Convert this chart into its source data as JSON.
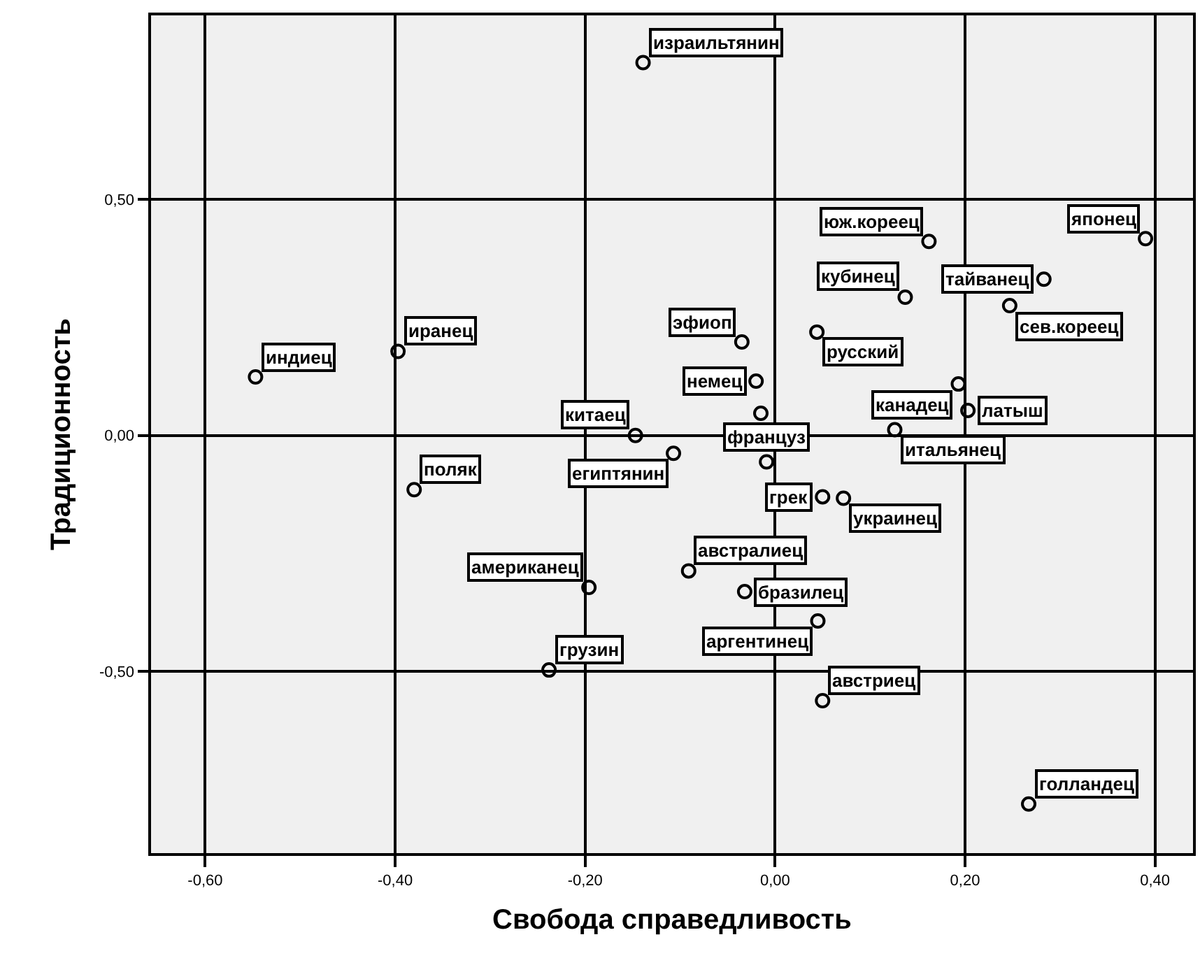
{
  "chart_data": {
    "type": "scatter",
    "xlabel": "Свобода справедливость",
    "ylabel": "Традиционность",
    "x": [
      -0.139,
      -0.547,
      -0.397,
      -0.147,
      -0.38,
      -0.196,
      -0.238,
      0.162,
      0.39,
      0.137,
      0.283,
      0.247,
      -0.035,
      0.044,
      -0.02,
      -0.015,
      -0.107,
      -0.009,
      0.126,
      0.193,
      0.203,
      0.05,
      0.072,
      -0.091,
      -0.032,
      0.045,
      0.05,
      0.267
    ],
    "values": [
      0.79,
      0.124,
      0.178,
      0.0,
      -0.115,
      -0.322,
      -0.497,
      0.411,
      0.417,
      0.293,
      0.331,
      0.275,
      0.198,
      0.219,
      0.115,
      0.047,
      -0.038,
      -0.056,
      0.012,
      0.109,
      0.053,
      -0.13,
      -0.133,
      -0.287,
      -0.331,
      -0.393,
      -0.562,
      -0.781
    ],
    "color": "#000000",
    "marker": "circle",
    "annotations": [
      {
        "text": "израильтянин",
        "x": -0.139,
        "y": 0.79
      },
      {
        "text": "индиец",
        "x": -0.547,
        "y": 0.124
      },
      {
        "text": "иранец",
        "x": -0.397,
        "y": 0.178
      },
      {
        "text": "китаец",
        "x": -0.147,
        "y": 0.0
      },
      {
        "text": "поляк",
        "x": -0.38,
        "y": -0.115
      },
      {
        "text": "американец",
        "x": -0.196,
        "y": -0.322
      },
      {
        "text": "грузин",
        "x": -0.238,
        "y": -0.497
      },
      {
        "text": "юж.кореец",
        "x": 0.162,
        "y": 0.411
      },
      {
        "text": "японец",
        "x": 0.39,
        "y": 0.417
      },
      {
        "text": "кубинец",
        "x": 0.137,
        "y": 0.293
      },
      {
        "text": "тайванец",
        "x": 0.283,
        "y": 0.331
      },
      {
        "text": "сев.кореец",
        "x": 0.247,
        "y": 0.275
      },
      {
        "text": "эфиоп",
        "x": -0.035,
        "y": 0.198
      },
      {
        "text": "русский",
        "x": 0.044,
        "y": 0.219
      },
      {
        "text": "немец",
        "x": -0.02,
        "y": 0.115
      },
      {
        "text": "египтянин",
        "x": -0.107,
        "y": -0.038
      },
      {
        "text": "француз",
        "x": -0.009,
        "y": -0.056
      },
      {
        "text": "итальянец",
        "x": 0.126,
        "y": 0.012
      },
      {
        "text": "канадец",
        "x": 0.193,
        "y": 0.109
      },
      {
        "text": "латыш",
        "x": 0.203,
        "y": 0.053
      },
      {
        "text": "грек",
        "x": 0.05,
        "y": -0.13
      },
      {
        "text": "украинец",
        "x": 0.072,
        "y": -0.133
      },
      {
        "text": "австралиец",
        "x": -0.091,
        "y": -0.287
      },
      {
        "text": "бразилец",
        "x": -0.032,
        "y": -0.331
      },
      {
        "text": "аргентинец",
        "x": 0.045,
        "y": -0.393
      },
      {
        "text": "австриец",
        "x": 0.05,
        "y": -0.562
      },
      {
        "text": "голландец",
        "x": 0.267,
        "y": -0.781
      }
    ],
    "xlim": [
      -0.657,
      0.44
    ],
    "ylim": [
      -0.885,
      0.89
    ],
    "xticks": [
      {
        "value": -0.6,
        "label": "-0,60"
      },
      {
        "value": -0.4,
        "label": "-0,40"
      },
      {
        "value": -0.2,
        "label": "-0,20"
      },
      {
        "value": 0,
        "label": "0,00"
      },
      {
        "value": 0.2,
        "label": "0,20"
      },
      {
        "value": 0.4,
        "label": "0,40"
      }
    ],
    "yticks": [
      {
        "value": -0.5,
        "label": "-0,50"
      },
      {
        "value": 0,
        "label": "0,00"
      },
      {
        "value": 0.5,
        "label": "0,50"
      }
    ],
    "grid": true,
    "legend": false
  }
}
